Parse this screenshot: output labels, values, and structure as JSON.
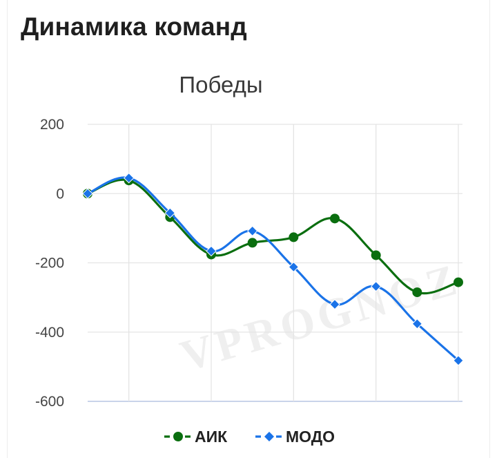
{
  "header": {
    "title": "Динамика команд"
  },
  "watermark": "VPROGNOZ",
  "chart_data": {
    "type": "line",
    "title": "Победы",
    "xlabel": "",
    "ylabel": "",
    "x": [
      0,
      1,
      2,
      3,
      4,
      5,
      6,
      7,
      8,
      9
    ],
    "ylim": [
      -600,
      200
    ],
    "yticks": [
      200,
      0,
      -200,
      -400,
      -600
    ],
    "ytick_labels": [
      "200",
      "0",
      "-200",
      "-400",
      "-600"
    ],
    "grid": true,
    "curve": "smooth",
    "legend_position": "bottom",
    "series": [
      {
        "name": "АИК",
        "color": "#0a6e0f",
        "marker": "circle",
        "values": [
          0,
          38,
          -68,
          -176,
          -142,
          -126,
          -72,
          -178,
          -285,
          -256
        ]
      },
      {
        "name": "МОДО",
        "color": "#1a73e8",
        "marker": "diamond",
        "values": [
          0,
          45,
          -56,
          -166,
          -108,
          -212,
          -320,
          -268,
          -376,
          -482
        ]
      }
    ]
  }
}
